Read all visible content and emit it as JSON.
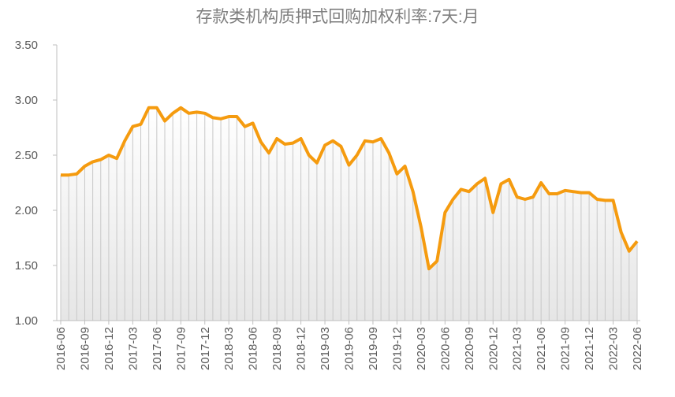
{
  "chart_data": {
    "type": "line",
    "title": "存款类机构质押式回购加权利率:7天:月",
    "categories": [
      "2016-06",
      null,
      null,
      "2016-09",
      null,
      null,
      "2016-12",
      null,
      null,
      "2017-03",
      null,
      null,
      "2017-06",
      null,
      null,
      "2017-09",
      null,
      null,
      "2017-12",
      null,
      null,
      "2018-03",
      null,
      null,
      "2018-06",
      null,
      null,
      "2018-09",
      null,
      null,
      "2018-12",
      null,
      null,
      "2019-03",
      null,
      null,
      "2019-06",
      null,
      null,
      "2019-09",
      null,
      null,
      "2019-12",
      null,
      null,
      "2020-03",
      null,
      null,
      "2020-06",
      null,
      null,
      "2020-09",
      null,
      null,
      "2020-12",
      null,
      null,
      "2021-03",
      null,
      null,
      "2021-06",
      null,
      null,
      "2021-09",
      null,
      null,
      "2021-12",
      null,
      null,
      "2022-03",
      null,
      null,
      "2022-06"
    ],
    "series": [
      {
        "color": "#f59b0f",
        "values": [
          2.32,
          2.32,
          2.33,
          2.4,
          2.44,
          2.46,
          2.5,
          2.47,
          2.63,
          2.76,
          2.78,
          2.93,
          2.93,
          2.81,
          2.88,
          2.93,
          2.88,
          2.89,
          2.88,
          2.84,
          2.83,
          2.85,
          2.85,
          2.76,
          2.79,
          2.62,
          2.52,
          2.65,
          2.6,
          2.61,
          2.65,
          2.5,
          2.43,
          2.59,
          2.63,
          2.58,
          2.41,
          2.5,
          2.63,
          2.62,
          2.65,
          2.52,
          2.33,
          2.4,
          2.17,
          1.85,
          1.47,
          1.54,
          1.98,
          2.1,
          2.19,
          2.17,
          2.24,
          2.29,
          1.98,
          2.24,
          2.28,
          2.12,
          2.1,
          2.12,
          2.25,
          2.15,
          2.15,
          2.18,
          2.17,
          2.16,
          2.16,
          2.1,
          2.09,
          2.09,
          1.8,
          1.63,
          1.72
        ]
      }
    ],
    "ylim": [
      1,
      3.5
    ],
    "yticks": [
      {
        "value": 1,
        "label": "1.00"
      },
      {
        "value": 1.5,
        "label": "1.50"
      },
      {
        "value": 2,
        "label": "2.00"
      },
      {
        "value": 2.5,
        "label": "2.50"
      },
      {
        "value": 3,
        "label": "3.00"
      },
      {
        "value": 3.5,
        "label": "3.50"
      }
    ],
    "drop_lines": true
  }
}
